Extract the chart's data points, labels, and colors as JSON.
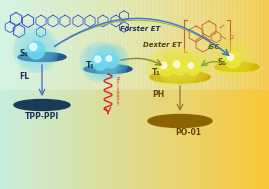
{
  "labels": {
    "tpp_ppi": "TPP-PPI",
    "po_01": "PO-01",
    "s1_left": "S₁",
    "fl": "FL",
    "t1_mid": "T₁",
    "t1_right": "T₁",
    "s1_right": "S₁",
    "ph": "PH",
    "forster": "Förster ET",
    "dexter": "Dexter ET",
    "isc": "ıSC",
    "non_rad": "Non-radiation"
  },
  "molecule_color_left": "#3355cc",
  "molecule_color_right": "#cc6622",
  "arrow_forster_color": "#4477cc",
  "arrow_forster_color2": "#88bb44",
  "arrow_dexter_color": "#888833",
  "arrow_isc_color": "#88aa33",
  "arrow_fl_color": "#4466bb",
  "squiggle_color": "#dd2222",
  "disc_blue_dark": "#1a3a5a",
  "disc_blue_mid": "#1e5a8a",
  "disc_yellow_dark": "#8a6400",
  "disc_yellow_mid": "#c8a000",
  "disc_yellow_light": "#d4b800",
  "glow_blue": "#70d8f0",
  "glow_yellow": "#e8e840",
  "label_blue": "#1a3060",
  "label_yellow": "#6a4400"
}
